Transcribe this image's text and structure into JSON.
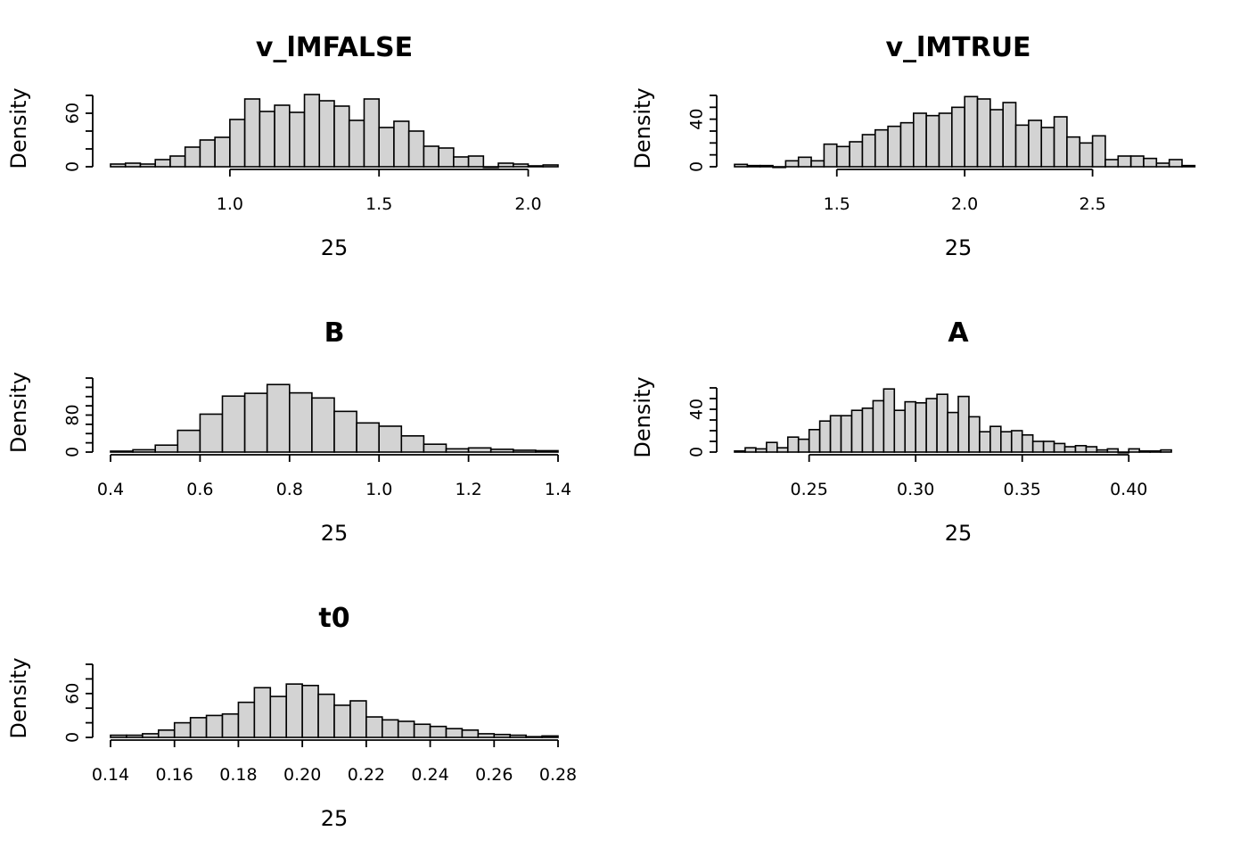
{
  "chart_data": [
    {
      "type": "bar",
      "title": "v_lMFALSE",
      "xlabel": "25",
      "ylabel": "Density",
      "xlim": [
        0.6,
        2.1
      ],
      "xticks": [
        1.0,
        1.5,
        2.0
      ],
      "xtick_labels": [
        "1.0",
        "1.5",
        "2.0"
      ],
      "ylim": [
        0,
        80
      ],
      "yticks": [
        0,
        20,
        40,
        60,
        80
      ],
      "ytick_labels": [
        "0",
        "",
        "",
        "60",
        ""
      ],
      "bins": {
        "start": 0.6,
        "width": 0.05,
        "values": [
          3,
          4,
          3,
          8,
          12,
          22,
          30,
          33,
          53,
          76,
          62,
          69,
          61,
          81,
          74,
          68,
          52,
          76,
          44,
          51,
          40,
          23,
          21,
          11,
          12,
          0,
          4,
          3,
          1,
          2
        ]
      }
    },
    {
      "type": "bar",
      "title": "v_lMTRUE",
      "xlabel": "25",
      "ylabel": "Density",
      "xlim": [
        1.1,
        2.85
      ],
      "xticks": [
        1.5,
        2.0,
        2.5
      ],
      "xtick_labels": [
        "1.5",
        "2.0",
        "2.5"
      ],
      "ylim": [
        0,
        60
      ],
      "yticks": [
        0,
        10,
        20,
        30,
        40,
        50,
        60
      ],
      "ytick_labels": [
        "0",
        "",
        "",
        "",
        "40",
        "",
        ""
      ],
      "bins": {
        "start": 1.1,
        "width": 0.05,
        "values": [
          2,
          1,
          1,
          0,
          5,
          8,
          5,
          19,
          17,
          21,
          27,
          31,
          34,
          37,
          45,
          43,
          45,
          50,
          59,
          57,
          48,
          54,
          35,
          39,
          33,
          42,
          25,
          20,
          26,
          6,
          9,
          9,
          7,
          3,
          6,
          1
        ]
      }
    },
    {
      "type": "bar",
      "title": "B",
      "xlabel": "25",
      "ylabel": "Density",
      "xlim": [
        0.4,
        1.4
      ],
      "xticks": [
        0.4,
        0.6,
        0.8,
        1.0,
        1.2,
        1.4
      ],
      "xtick_labels": [
        "0.4",
        "0.6",
        "0.8",
        "1.0",
        "1.2",
        "1.4"
      ],
      "ylim": [
        0,
        160
      ],
      "yticks": [
        0,
        20,
        40,
        60,
        80,
        100,
        120,
        140,
        160
      ],
      "ytick_labels": [
        "0",
        "",
        "",
        "",
        "80",
        "",
        "",
        "",
        ""
      ],
      "bins": {
        "start": 0.4,
        "width": 0.05,
        "values": [
          2,
          5,
          15,
          47,
          82,
          121,
          127,
          146,
          128,
          117,
          88,
          63,
          56,
          35,
          17,
          7,
          9,
          6,
          4,
          3
        ]
      }
    },
    {
      "type": "bar",
      "title": "A",
      "xlabel": "25",
      "ylabel": "Density",
      "xlim": [
        0.215,
        0.425
      ],
      "xticks": [
        0.25,
        0.3,
        0.35,
        0.4
      ],
      "xtick_labels": [
        "0.25",
        "0.30",
        "0.35",
        "0.40"
      ],
      "ylim": [
        0,
        60
      ],
      "yticks": [
        0,
        10,
        20,
        30,
        40,
        50,
        60
      ],
      "ytick_labels": [
        "0",
        "",
        "",
        "",
        "40",
        "",
        ""
      ],
      "bins": {
        "start": 0.215,
        "width": 0.005,
        "values": [
          1,
          4,
          3,
          9,
          4,
          14,
          12,
          21,
          29,
          34,
          34,
          39,
          41,
          48,
          59,
          39,
          47,
          46,
          50,
          54,
          37,
          52,
          33,
          19,
          24,
          19,
          20,
          16,
          10,
          10,
          8,
          5,
          6,
          5,
          2,
          3,
          0,
          3,
          1,
          1,
          2
        ]
      }
    },
    {
      "type": "bar",
      "title": "t0",
      "xlabel": "25",
      "ylabel": "Density",
      "xlim": [
        0.14,
        0.28
      ],
      "xticks": [
        0.14,
        0.16,
        0.18,
        0.2,
        0.22,
        0.24,
        0.26,
        0.28
      ],
      "xtick_labels": [
        "0.14",
        "0.16",
        "0.18",
        "0.20",
        "0.22",
        "0.24",
        "0.26",
        "0.28"
      ],
      "ylim": [
        0,
        100
      ],
      "yticks": [
        0,
        20,
        40,
        60,
        80,
        100
      ],
      "ytick_labels": [
        "0",
        "",
        "",
        "60",
        "",
        ""
      ],
      "bins": {
        "start": 0.14,
        "width": 0.005,
        "values": [
          3,
          3,
          5,
          10,
          20,
          27,
          30,
          32,
          48,
          68,
          56,
          73,
          71,
          59,
          44,
          50,
          28,
          24,
          22,
          18,
          15,
          12,
          10,
          5,
          4,
          3,
          1,
          2
        ]
      }
    }
  ]
}
